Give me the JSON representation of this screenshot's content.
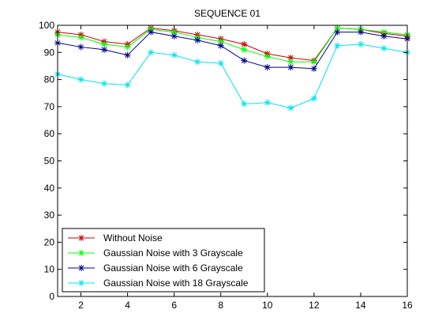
{
  "chart_data": {
    "type": "line",
    "title": "SEQUENCE 01",
    "xlabel": "",
    "ylabel": "",
    "xlim": [
      1,
      16
    ],
    "ylim": [
      0,
      100
    ],
    "xticks": [
      2,
      4,
      6,
      8,
      10,
      12,
      14,
      16
    ],
    "yticks": [
      0,
      10,
      20,
      30,
      40,
      50,
      60,
      70,
      80,
      90,
      100
    ],
    "grid": false,
    "legend_position": "bottom-left",
    "x": [
      1,
      2,
      3,
      4,
      5,
      6,
      7,
      8,
      9,
      10,
      11,
      12,
      13,
      14,
      15,
      16
    ],
    "series": [
      {
        "name": "Without Noise",
        "color": "#cc0000",
        "marker": "asterisk",
        "values": [
          97.5,
          96.5,
          94,
          93,
          99,
          98,
          96.5,
          95,
          93,
          89.5,
          88,
          87,
          99,
          98.5,
          97,
          96
        ]
      },
      {
        "name": "Gaussian Noise with 3 Grayscale",
        "color": "#00ff00",
        "marker": "asterisk",
        "values": [
          96.5,
          95.5,
          93,
          92,
          98.5,
          97.5,
          95.5,
          94,
          91,
          88.5,
          86.5,
          86.5,
          99,
          98.5,
          97.5,
          96.5
        ]
      },
      {
        "name": "Gaussian Noise with 6 Grayscale",
        "color": "#00008b",
        "marker": "asterisk",
        "values": [
          93.5,
          92,
          91,
          89,
          97.5,
          96,
          94.5,
          92.5,
          87,
          84.5,
          84.5,
          84,
          97.5,
          97.5,
          96,
          95
        ]
      },
      {
        "name": "Gaussian Noise with 18 Grayscale",
        "color": "#00e5ee",
        "marker": "asterisk",
        "values": [
          82,
          80,
          78.5,
          78,
          90,
          89,
          86.5,
          86,
          71,
          71.5,
          69.5,
          73,
          92.5,
          93,
          91.5,
          90
        ]
      }
    ]
  }
}
